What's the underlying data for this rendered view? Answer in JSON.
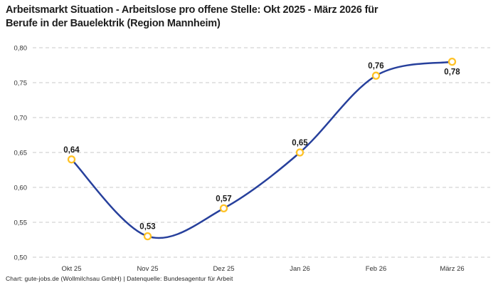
{
  "header": {
    "title_lines": [
      "Arbeitsmarkt Situation - Arbeitslose pro offene Stelle: Okt 2025 - März 2026 für",
      "Berufe in der Bauelektrik (Region Mannheim)"
    ]
  },
  "footer": {
    "credit": "Chart: gute-jobs.de (Wollmilchsau GmbH) | Datenquelle: Bundesagentur für Arbeit"
  },
  "chart_data": {
    "type": "line",
    "title": "Arbeitsmarkt Situation - Arbeitslose pro offene Stelle: Okt 2025 - März 2026 für Berufe in der Bauelektrik (Region Mannheim)",
    "categories": [
      "Okt 25",
      "Nov 25",
      "Dez 25",
      "Jan 26",
      "Feb 26",
      "März 26"
    ],
    "values": [
      0.64,
      0.53,
      0.57,
      0.65,
      0.76,
      0.78
    ],
    "point_labels": [
      "0,64",
      "0,53",
      "0,57",
      "0,65",
      "0,76",
      "0,78"
    ],
    "xlabel": "",
    "ylabel": "",
    "ylim": [
      0.5,
      0.8
    ],
    "ytick_values": [
      0.5,
      0.55,
      0.6,
      0.65,
      0.7,
      0.75,
      0.8
    ],
    "ytick_labels": [
      "0,50",
      "0,55",
      "0,60",
      "0,65",
      "0,70",
      "0,75",
      "0,80"
    ],
    "grid": "dashed-horizontal",
    "legend": "none",
    "curve": "smooth",
    "colors": {
      "line": "#27409c",
      "marker_ring": "#ffc226",
      "marker_fill": "#ffffff",
      "grid": "#c9c9c9",
      "point_label": "#1a1a1a",
      "tick_label": "#333333",
      "title": "#1d1d1d"
    }
  }
}
